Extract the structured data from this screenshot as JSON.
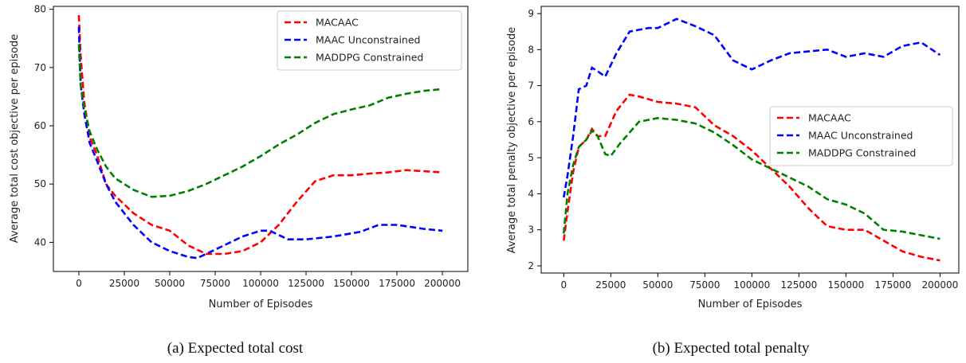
{
  "chart_data": [
    {
      "type": "line",
      "caption": "(a) Expected total cost",
      "xlabel": "Number of Episodes",
      "ylabel": "Average total cost objective per episode",
      "xlim": [
        -14000,
        214000
      ],
      "ylim": [
        35,
        80.5
      ],
      "xticks": [
        0,
        25000,
        50000,
        75000,
        100000,
        125000,
        150000,
        175000,
        200000
      ],
      "xtick_labels": [
        "0",
        "25000",
        "50000",
        "75000",
        "100000",
        "125000",
        "150000",
        "175000",
        "200000"
      ],
      "yticks": [
        40,
        50,
        60,
        70,
        80
      ],
      "ytick_labels": [
        "40",
        "50",
        "60",
        "70",
        "80"
      ],
      "legend_position": "top-right",
      "series": [
        {
          "name": "MACAAC",
          "color": "#ff0000",
          "x": [
            0,
            1000,
            3000,
            6000,
            10000,
            15000,
            20000,
            30000,
            40000,
            50000,
            60000,
            70000,
            80000,
            90000,
            100000,
            110000,
            120000,
            130000,
            140000,
            150000,
            160000,
            170000,
            180000,
            190000,
            200000
          ],
          "y": [
            79,
            72,
            64,
            58,
            55,
            50,
            48,
            45,
            43,
            42,
            39.5,
            38,
            38,
            38.5,
            40,
            43,
            47,
            50.5,
            51.5,
            51.5,
            51.8,
            52,
            52.4,
            52.2,
            52
          ]
        },
        {
          "name": "MAAC Unconstrained",
          "color": "#0000ff",
          "x": [
            0,
            1000,
            3000,
            6000,
            10000,
            15000,
            20000,
            30000,
            40000,
            50000,
            60000,
            65000,
            70000,
            80000,
            90000,
            100000,
            105000,
            115000,
            125000,
            140000,
            155000,
            165000,
            175000,
            190000,
            200000
          ],
          "y": [
            77,
            67,
            62,
            57,
            54,
            50,
            47,
            43,
            40,
            38.5,
            37.5,
            37.3,
            38,
            39.5,
            41,
            42,
            42,
            40.5,
            40.5,
            41,
            41.8,
            43,
            43,
            42.3,
            42
          ]
        },
        {
          "name": "MADDPG Constrained",
          "color": "#008000",
          "x": [
            0,
            1000,
            3000,
            6000,
            10000,
            15000,
            20000,
            30000,
            40000,
            50000,
            60000,
            70000,
            80000,
            90000,
            100000,
            110000,
            120000,
            130000,
            140000,
            150000,
            160000,
            170000,
            180000,
            190000,
            200000
          ],
          "y": [
            74,
            67,
            63,
            59,
            56,
            53,
            51,
            49,
            47.8,
            48,
            48.8,
            50,
            51.5,
            53,
            54.8,
            56.8,
            58.5,
            60.5,
            62,
            62.8,
            63.5,
            64.8,
            65.5,
            66,
            66.3
          ]
        }
      ]
    },
    {
      "type": "line",
      "caption": "(b) Expected total penalty",
      "xlabel": "Number of Episodes",
      "ylabel": "Average total penalty objective per episode",
      "xlim": [
        -12000,
        210000
      ],
      "ylim": [
        1.8,
        9.2
      ],
      "xticks": [
        0,
        25000,
        50000,
        75000,
        100000,
        125000,
        150000,
        175000,
        200000
      ],
      "xtick_labels": [
        "0",
        "25000",
        "50000",
        "75000",
        "100000",
        "125000",
        "150000",
        "175000",
        "200000"
      ],
      "yticks": [
        2,
        3,
        4,
        5,
        6,
        7,
        8,
        9
      ],
      "ytick_labels": [
        "2",
        "3",
        "4",
        "5",
        "6",
        "7",
        "8",
        "9"
      ],
      "legend_position": "center-right",
      "series": [
        {
          "name": "MACAAC",
          "color": "#ff0000",
          "x": [
            0,
            2000,
            5000,
            8000,
            12000,
            15000,
            18000,
            22000,
            28000,
            35000,
            40000,
            50000,
            60000,
            70000,
            80000,
            90000,
            100000,
            110000,
            120000,
            130000,
            140000,
            150000,
            160000,
            170000,
            180000,
            190000,
            200000
          ],
          "y": [
            2.7,
            3.5,
            4.6,
            5.3,
            5.5,
            5.8,
            5.6,
            5.6,
            6.3,
            6.75,
            6.7,
            6.55,
            6.5,
            6.4,
            5.9,
            5.6,
            5.2,
            4.7,
            4.2,
            3.6,
            3.1,
            3.0,
            3.0,
            2.7,
            2.4,
            2.25,
            2.15
          ]
        },
        {
          "name": "MAAC Unconstrained",
          "color": "#0000ff",
          "x": [
            0,
            2000,
            5000,
            8000,
            12000,
            15000,
            18000,
            22000,
            28000,
            35000,
            45000,
            50000,
            60000,
            70000,
            80000,
            90000,
            100000,
            110000,
            120000,
            130000,
            140000,
            150000,
            160000,
            170000,
            180000,
            190000,
            200000
          ],
          "y": [
            3.9,
            4.5,
            5.6,
            6.9,
            7.0,
            7.5,
            7.4,
            7.25,
            7.9,
            8.5,
            8.6,
            8.6,
            8.85,
            8.65,
            8.4,
            7.7,
            7.45,
            7.7,
            7.9,
            7.95,
            8.0,
            7.8,
            7.9,
            7.8,
            8.1,
            8.2,
            7.85
          ]
        },
        {
          "name": "MADDPG Constrained",
          "color": "#008000",
          "x": [
            0,
            2000,
            5000,
            8000,
            12000,
            15000,
            18000,
            22000,
            25000,
            30000,
            40000,
            50000,
            60000,
            70000,
            80000,
            90000,
            100000,
            110000,
            120000,
            130000,
            140000,
            150000,
            160000,
            170000,
            180000,
            190000,
            200000
          ],
          "y": [
            2.9,
            4.0,
            4.8,
            5.3,
            5.5,
            5.75,
            5.6,
            5.1,
            5.05,
            5.4,
            6.0,
            6.1,
            6.05,
            5.95,
            5.7,
            5.35,
            4.95,
            4.7,
            4.45,
            4.2,
            3.85,
            3.7,
            3.45,
            3.0,
            2.95,
            2.85,
            2.75
          ]
        }
      ]
    }
  ]
}
